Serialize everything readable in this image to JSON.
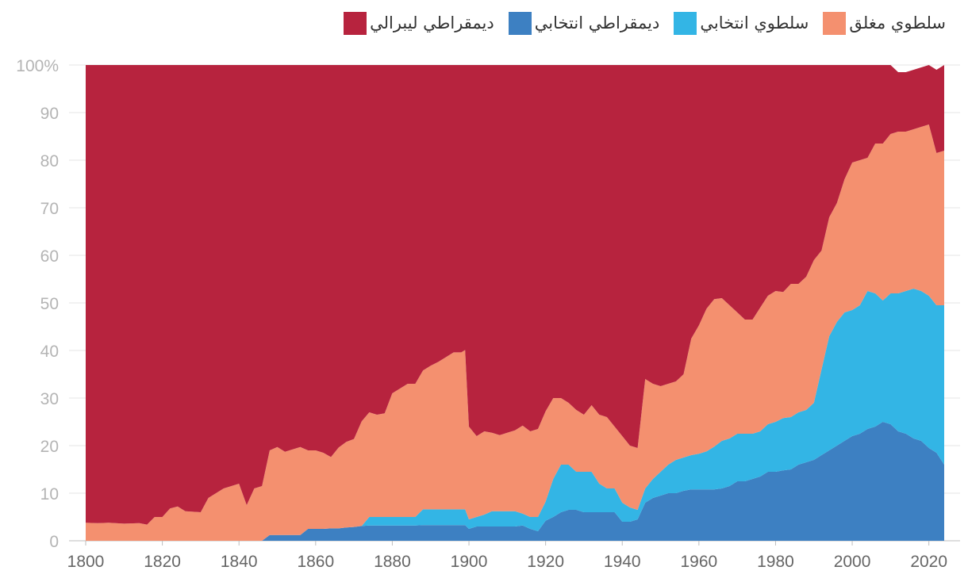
{
  "chart_data": {
    "type": "area",
    "stacked": true,
    "title": "",
    "xlabel": "",
    "ylabel": "",
    "xlim": [
      1800,
      2024
    ],
    "ylim": [
      0,
      100
    ],
    "x_ticks": [
      1800,
      1820,
      1840,
      1860,
      1880,
      1900,
      1920,
      1940,
      1960,
      1980,
      2000,
      2020
    ],
    "x_tick_labels": [
      "1800",
      "1820",
      "1840",
      "1860",
      "1880",
      "1900",
      "1920",
      "1940",
      "1960",
      "1980",
      "2000",
      "2020"
    ],
    "y_ticks": [
      0,
      10,
      20,
      30,
      40,
      50,
      60,
      70,
      80,
      90,
      100
    ],
    "y_tick_labels": [
      "0",
      "10",
      "20",
      "30",
      "40",
      "50",
      "60",
      "70",
      "80",
      "90",
      "100%"
    ],
    "grid": true,
    "legend_position": "top",
    "x": [
      1800,
      1803,
      1806,
      1810,
      1814,
      1816,
      1818,
      1820,
      1822,
      1824,
      1826,
      1830,
      1832,
      1834,
      1836,
      1838,
      1840,
      1842,
      1844,
      1846,
      1848,
      1850,
      1852,
      1854,
      1856,
      1858,
      1860,
      1862,
      1864,
      1866,
      1868,
      1870,
      1872,
      1874,
      1876,
      1878,
      1880,
      1882,
      1884,
      1886,
      1888,
      1890,
      1892,
      1894,
      1896,
      1898,
      1899,
      1900,
      1902,
      1904,
      1906,
      1908,
      1910,
      1912,
      1914,
      1916,
      1918,
      1920,
      1922,
      1924,
      1926,
      1928,
      1930,
      1932,
      1934,
      1936,
      1938,
      1940,
      1942,
      1944,
      1946,
      1948,
      1950,
      1952,
      1954,
      1956,
      1958,
      1960,
      1962,
      1964,
      1966,
      1968,
      1970,
      1972,
      1974,
      1976,
      1978,
      1980,
      1982,
      1984,
      1986,
      1988,
      1990,
      1992,
      1994,
      1996,
      1998,
      2000,
      2002,
      2004,
      2006,
      2008,
      2010,
      2012,
      2014,
      2016,
      2018,
      2020,
      2022,
      2024
    ],
    "series": [
      {
        "name": "ديمقراطي انتخابي",
        "color": "#3d80c2",
        "values": [
          0,
          0,
          0,
          0,
          0,
          0,
          0,
          0,
          0,
          0,
          0,
          0,
          0,
          0,
          0,
          0,
          0,
          0,
          0,
          0,
          1.2,
          1.2,
          1.2,
          1.2,
          1.2,
          2.5,
          2.5,
          2.5,
          2.6,
          2.6,
          2.8,
          2.9,
          3.1,
          3.2,
          3.2,
          3.2,
          3.2,
          3.2,
          3.2,
          3.2,
          3.3,
          3.3,
          3.3,
          3.3,
          3.3,
          3.3,
          3.3,
          2.5,
          3.0,
          3.0,
          3.0,
          3.0,
          3.0,
          3.0,
          3.2,
          2.5,
          2.0,
          4.2,
          5.0,
          6.0,
          6.5,
          6.5,
          6.0,
          6.0,
          6.0,
          6.0,
          6.0,
          4.0,
          4.0,
          4.5,
          8.0,
          9.0,
          9.5,
          10.0,
          10.0,
          10.5,
          10.8,
          10.8,
          10.8,
          10.8,
          11.0,
          11.5,
          12.5,
          12.5,
          13.0,
          13.5,
          14.5,
          14.5,
          14.8,
          15.0,
          16.0,
          16.5,
          17.0,
          18.0,
          19.0,
          20.0,
          21.0,
          22.0,
          22.5,
          23.5,
          24.0,
          25.0,
          24.5,
          23.0,
          22.5,
          21.5,
          21.0,
          19.5,
          18.5,
          16.0
        ]
      },
      {
        "name": "سلطوي انتخابي",
        "color": "#33b5e5",
        "values": [
          0,
          0,
          0,
          0,
          0,
          0,
          0,
          0,
          0,
          0,
          0,
          0,
          0,
          0,
          0,
          0,
          0,
          0,
          0,
          0,
          0,
          0,
          0,
          0,
          0,
          0,
          0,
          0,
          0,
          0,
          0,
          0,
          0,
          1.8,
          1.8,
          1.8,
          1.8,
          1.8,
          1.8,
          1.8,
          3.3,
          3.3,
          3.3,
          3.3,
          3.3,
          3.3,
          3.3,
          2.0,
          2.0,
          2.5,
          3.2,
          3.2,
          3.2,
          3.2,
          2.5,
          2.5,
          3.0,
          4.0,
          8.0,
          10.0,
          9.5,
          8.0,
          8.5,
          8.5,
          6.0,
          5.0,
          5.0,
          4.0,
          3.0,
          2.0,
          3.0,
          4.0,
          5.0,
          6.0,
          7.0,
          7.0,
          7.2,
          7.5,
          8.0,
          9.0,
          10.0,
          10.0,
          10.0,
          10.0,
          9.5,
          9.5,
          10.0,
          10.5,
          11.0,
          11.0,
          11.0,
          11.0,
          12.0,
          18.0,
          24.0,
          26.0,
          27.0,
          26.5,
          27.0,
          29.0,
          28.0,
          25.5,
          27.5,
          29.0,
          30.0,
          31.5,
          31.5,
          32.0,
          31.0,
          33.5
        ]
      },
      {
        "name": "سلطوي مغلق",
        "color": "#f4906f",
        "values": [
          3.8,
          3.7,
          3.8,
          3.6,
          3.7,
          3.4,
          5.0,
          5.0,
          6.8,
          7.2,
          6.2,
          6.0,
          9.0,
          10.0,
          11.0,
          11.5,
          12.0,
          7.5,
          11.0,
          11.5,
          17.8,
          18.5,
          17.5,
          18.0,
          18.5,
          16.5,
          16.5,
          16.0,
          15.0,
          17.0,
          18.0,
          18.5,
          22.0,
          22.0,
          21.5,
          21.8,
          26.0,
          27.0,
          28.0,
          28.0,
          29.2,
          30.2,
          31.0,
          32.0,
          33.0,
          33.0,
          33.5,
          19.5,
          17.0,
          17.5,
          16.5,
          16.0,
          16.5,
          17.0,
          18.5,
          18.0,
          18.5,
          19.0,
          17.0,
          14.0,
          13.0,
          13.0,
          12.0,
          14.0,
          14.5,
          15.0,
          13.0,
          14.0,
          13.0,
          13.0,
          23.0,
          20.0,
          18.0,
          17.0,
          16.5,
          17.5,
          24.5,
          27.0,
          30.0,
          31.0,
          30.0,
          28.0,
          25.5,
          24.0,
          24.0,
          26.0,
          27.0,
          27.5,
          26.5,
          28.0,
          27.0,
          28.0,
          30.0,
          25.0,
          25.0,
          25.0,
          28.0,
          31.0,
          30.5,
          28.0,
          31.5,
          33.0,
          33.5,
          34.0,
          33.5,
          33.5,
          34.5,
          36.0,
          32.0,
          32.5
        ]
      },
      {
        "name": "ديمقراطي ليبرالي",
        "color": "#b7233e",
        "values": [
          96.2,
          96.3,
          96.2,
          96.4,
          96.3,
          96.6,
          95.0,
          95.0,
          93.2,
          92.8,
          93.8,
          94.0,
          91.0,
          90.0,
          89.0,
          88.5,
          88.0,
          92.5,
          89.0,
          88.5,
          81.0,
          80.3,
          81.3,
          80.8,
          80.3,
          81.0,
          81.0,
          81.5,
          82.4,
          80.4,
          79.2,
          78.6,
          74.9,
          73.0,
          73.5,
          73.2,
          69.0,
          68.0,
          67.0,
          67.0,
          64.2,
          63.2,
          62.4,
          61.4,
          60.4,
          60.4,
          59.9,
          76.0,
          78.0,
          77.0,
          77.3,
          77.8,
          77.3,
          76.8,
          75.8,
          77.0,
          76.5,
          72.8,
          70.0,
          70.0,
          71.0,
          72.5,
          73.5,
          71.5,
          73.5,
          74.0,
          76.0,
          78.0,
          80.0,
          80.5,
          66.0,
          67.0,
          67.5,
          67.0,
          66.5,
          65.0,
          57.5,
          54.7,
          51.2,
          49.2,
          49.0,
          50.5,
          52.0,
          53.5,
          53.5,
          51.0,
          48.5,
          47.5,
          47.7,
          46.0,
          46.0,
          44.5,
          41.0,
          39.0,
          32.0,
          29.0,
          24.0,
          20.5,
          20.0,
          19.5,
          16.5,
          16.5,
          14.5,
          12.5,
          12.5,
          12.5,
          12.5,
          12.5,
          17.5,
          18.0
        ]
      }
    ]
  },
  "legend": [
    {
      "label": "ديمقراطي ليبرالي",
      "color": "#b7233e"
    },
    {
      "label": "ديمقراطي انتخابي",
      "color": "#3d80c2"
    },
    {
      "label": "سلطوي انتخابي",
      "color": "#33b5e5"
    },
    {
      "label": "سلطوي مغلق",
      "color": "#f4906f"
    }
  ]
}
